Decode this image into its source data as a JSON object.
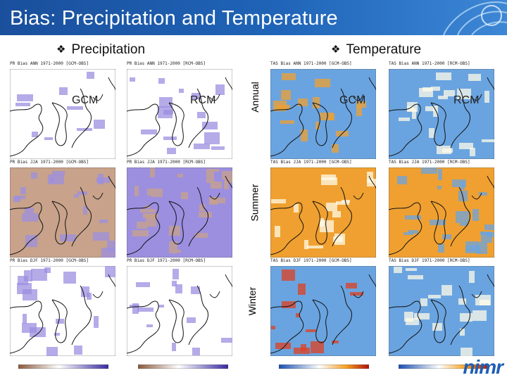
{
  "slide": {
    "title": "Bias: Precipitation and Temperature",
    "logo_text": "nimr"
  },
  "sections": {
    "precipitation": "Precipitation",
    "temperature": "Temperature"
  },
  "rows": [
    "Annual",
    "Summer",
    "Winter"
  ],
  "model_labels": {
    "gcm": "GCM",
    "rcm": "RCM"
  },
  "panels": {
    "pr_ann_gcm": "PR Bias ANN 1971-2000 [GCM-OBS]",
    "pr_ann_rcm": "PR Bias ANN 1971-2000 [RCM-OBS]",
    "tas_ann_gcm": "TAS Bias ANN 1971-2000 [GCM-OBS]",
    "tas_ann_rcm": "TAS Bias ANN 1971-2000 [RCM-OBS]",
    "pr_jja_gcm": "PR Bias JJA 1971-2000 [GCM-OBS]",
    "pr_jja_rcm": "PR Bias JJA 1971-2000 [RCM-OBS]",
    "tas_jja_gcm": "TAS Bias JJA 1971-2000 [GCM-OBS]",
    "tas_jja_rcm": "TAS Bias JJA 1971-2000 [RCM-OBS]",
    "pr_djf_gcm": "PR Bias DJF 1971-2000 [GCM-OBS]",
    "pr_djf_rcm": "PR Bias DJF 1971-2000 [RCM-OBS]",
    "tas_djf_gcm": "TAS Bias DJF 1971-2000 [GCM-OBS]",
    "tas_djf_rcm": "TAS Bias DJF 1971-2000 [RCM-OBS]"
  },
  "colors": {
    "pr_dry": "#c8a28a",
    "pr_neutral": "#ffffff",
    "pr_wet": "#9c8fe0",
    "tas_cold": "#6aa4e0",
    "tas_neutral": "#fffbe8",
    "tas_warm": "#f0a030"
  }
}
